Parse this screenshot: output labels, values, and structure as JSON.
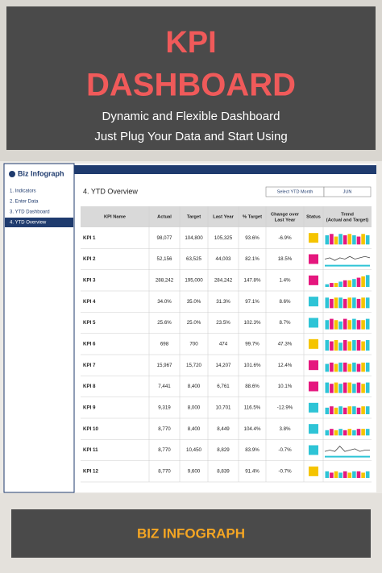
{
  "header": {
    "title_line1": "KPI",
    "title_line2": "DASHBOARD",
    "subtitle_line1": "Dynamic and Flexible Dashboard",
    "subtitle_line2": "Just Plug Your Data and Start Using"
  },
  "sidebar": {
    "logo": "Biz Infograph",
    "items": [
      "1. Indicators",
      "2. Enter Data",
      "3. YTD Dashboard",
      "4. YTD Overview"
    ],
    "active": 3
  },
  "panel": {
    "title": "4. YTD Overview",
    "selector_label": "Select YTD Month",
    "selector_value": "JUN"
  },
  "table": {
    "columns": [
      "KPI Name",
      "Actual",
      "Target",
      "Last Year",
      "% Target",
      "Change over Last Year",
      "Status",
      "Trend (Actual and Target)"
    ],
    "trend_colors": [
      "#2ec4d6",
      "#e5177e",
      "#f5c400"
    ],
    "rows": [
      {
        "cells": [
          "KPI 1",
          "98,077",
          "104,800",
          "105,325",
          "93.6%",
          "-6.9%"
        ],
        "status": "#f5c400",
        "trend_type": "bars",
        "trend": [
          7,
          8,
          6,
          8,
          7,
          8,
          7,
          6,
          8,
          7
        ]
      },
      {
        "cells": [
          "KPI 2",
          "52,156",
          "63,525",
          "44,003",
          "82.1%",
          "18.5%"
        ],
        "status": "#e5177e",
        "trend_type": "line",
        "trend": [
          5,
          6,
          4,
          6,
          5,
          7,
          5,
          6,
          7,
          6
        ]
      },
      {
        "cells": [
          "KPI 3",
          "288,242",
          "195,000",
          "284,242",
          "147.8%",
          "1.4%"
        ],
        "status": "#e5177e",
        "trend_type": "bars",
        "trend": [
          2,
          3,
          3,
          4,
          5,
          5,
          6,
          7,
          8,
          9
        ]
      },
      {
        "cells": [
          "KPI 4",
          "34.0%",
          "35.0%",
          "31.3%",
          "97.1%",
          "8.6%"
        ],
        "status": "#2ec4d6",
        "trend_type": "bars",
        "trend": [
          8,
          7,
          8,
          8,
          7,
          8,
          8,
          7,
          8,
          8
        ]
      },
      {
        "cells": [
          "KPI 5",
          "25.6%",
          "25.0%",
          "23.5%",
          "102.3%",
          "8.7%"
        ],
        "status": "#2ec4d6",
        "trend_type": "bars",
        "trend": [
          7,
          8,
          7,
          6,
          8,
          7,
          8,
          7,
          7,
          8
        ]
      },
      {
        "cells": [
          "KPI 6",
          "698",
          "700",
          "474",
          "99.7%",
          "47.3%"
        ],
        "status": "#f5c400",
        "trend_type": "bars",
        "trend": [
          8,
          7,
          8,
          6,
          8,
          7,
          8,
          8,
          7,
          8
        ]
      },
      {
        "cells": [
          "KPI 7",
          "15,967",
          "15,720",
          "14,207",
          "101.6%",
          "12.4%"
        ],
        "status": "#e5177e",
        "trend_type": "bars",
        "trend": [
          6,
          7,
          6,
          7,
          7,
          6,
          7,
          6,
          7,
          7
        ]
      },
      {
        "cells": [
          "KPI 8",
          "7,441",
          "8,400",
          "6,761",
          "88.6%",
          "10.1%"
        ],
        "status": "#e5177e",
        "trend_type": "bars",
        "trend": [
          8,
          7,
          8,
          7,
          8,
          8,
          7,
          8,
          7,
          8
        ]
      },
      {
        "cells": [
          "KPI 9",
          "9,319",
          "8,000",
          "10,701",
          "116.5%",
          "-12.9%"
        ],
        "status": "#2ec4d6",
        "trend_type": "bars",
        "trend": [
          5,
          6,
          5,
          6,
          5,
          6,
          6,
          5,
          6,
          6
        ]
      },
      {
        "cells": [
          "KPI 10",
          "8,770",
          "8,400",
          "8,449",
          "104.4%",
          "3.8%"
        ],
        "status": "#2ec4d6",
        "trend_type": "bars",
        "trend": [
          4,
          5,
          4,
          5,
          4,
          5,
          4,
          5,
          5,
          5
        ]
      },
      {
        "cells": [
          "KPI 11",
          "8,770",
          "10,450",
          "8,829",
          "83.9%",
          "-0.7%"
        ],
        "status": "#2ec4d6",
        "trend_type": "line",
        "trend": [
          4,
          5,
          4,
          8,
          4,
          5,
          6,
          4,
          5,
          5
        ]
      },
      {
        "cells": [
          "KPI 12",
          "8,770",
          "9,600",
          "8,839",
          "91.4%",
          "-0.7%"
        ],
        "status": "#f5c400",
        "trend_type": "bars",
        "trend": [
          5,
          4,
          5,
          4,
          5,
          4,
          5,
          5,
          4,
          5
        ]
      }
    ]
  },
  "footer": {
    "brand": "BIZ INFOGRAPH"
  }
}
